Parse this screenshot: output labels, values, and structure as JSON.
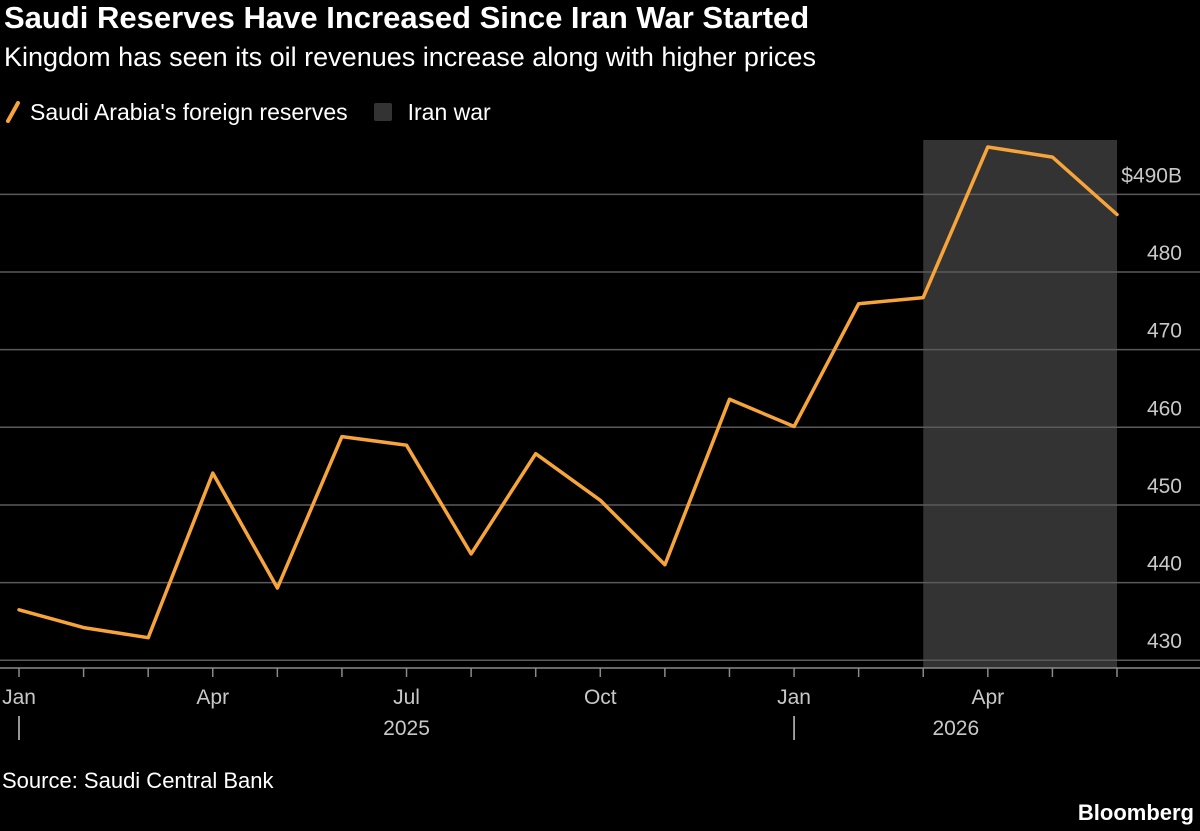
{
  "title": "Saudi Reserves Have Increased Since Iran War Started",
  "subtitle": "Kingdom has seen its oil revenues increase along with higher prices",
  "legend": {
    "series_label": "Saudi Arabia's foreign reserves",
    "shade_label": "Iran war"
  },
  "colors": {
    "background": "#000000",
    "line": "#f7a43b",
    "shade": "#333333",
    "grid": "#5a5a5a",
    "text": "#ffffff",
    "axis_text": "#c8c8c8"
  },
  "source": "Source: Saudi Central Bank",
  "brand": "Bloomberg",
  "chart_data": {
    "type": "line",
    "x": [
      "2025-01",
      "2025-02",
      "2025-03",
      "2025-04",
      "2025-05",
      "2025-06",
      "2025-07",
      "2025-08",
      "2025-09",
      "2025-10",
      "2025-11",
      "2025-12",
      "2026-01",
      "2026-02",
      "2026-03",
      "2026-04",
      "2026-05",
      "2026-06"
    ],
    "series": [
      {
        "name": "Saudi Arabia's foreign reserves",
        "values": [
          436.5,
          434.2,
          432.9,
          454.1,
          439.3,
          458.8,
          457.7,
          443.7,
          456.6,
          450.6,
          442.3,
          463.6,
          460.1,
          475.9,
          476.7,
          496.1,
          494.8,
          487.4
        ]
      }
    ],
    "shaded_region": {
      "label": "Iran war",
      "start": "2026-03",
      "end": "2026-06"
    },
    "y_ticks": [
      {
        "value": 430,
        "label": "430"
      },
      {
        "value": 440,
        "label": "440"
      },
      {
        "value": 450,
        "label": "450"
      },
      {
        "value": 460,
        "label": "460"
      },
      {
        "value": 470,
        "label": "470"
      },
      {
        "value": 480,
        "label": "480"
      },
      {
        "value": 490,
        "label": "$490B"
      }
    ],
    "x_ticks": [
      {
        "x": "2025-01",
        "label": "Jan"
      },
      {
        "x": "2025-04",
        "label": "Apr"
      },
      {
        "x": "2025-07",
        "label": "Jul"
      },
      {
        "x": "2025-10",
        "label": "Oct"
      },
      {
        "x": "2026-01",
        "label": "Jan"
      },
      {
        "x": "2026-04",
        "label": "Apr"
      }
    ],
    "year_labels": [
      {
        "x": "2025-07",
        "label": "2025"
      },
      {
        "x": "2026-04",
        "label": "2026"
      }
    ],
    "year_separators": [
      "2025-01",
      "2026-01"
    ],
    "ylim": [
      429,
      497
    ],
    "y_axis_position": "right",
    "grid": true,
    "legend_position": "top-left"
  }
}
